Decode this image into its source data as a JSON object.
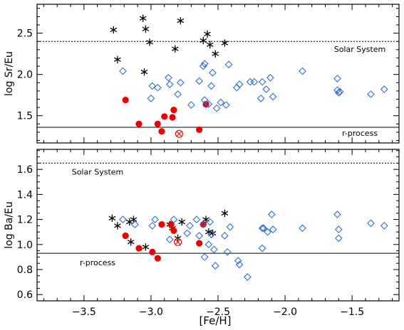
{
  "chart_data": [
    {
      "type": "scatter",
      "ylabel": "log Sr/Eu",
      "xlim": [
        -3.85,
        -1.15
      ],
      "ylim": [
        1.17,
        2.85
      ],
      "yticks": [
        1.5,
        2.0,
        2.5
      ],
      "ytick_labels": [
        "1.5",
        "2.0",
        "2.5"
      ],
      "reference_lines": [
        {
          "label": "Solar System",
          "y": 2.4,
          "style": "dotted"
        },
        {
          "label": "r-process",
          "y": 1.36,
          "style": "solid"
        }
      ],
      "series": [
        {
          "marker": "asterisk",
          "color": "#000000",
          "points": [
            [
              -3.28,
              2.54
            ],
            [
              -3.25,
              2.18
            ],
            [
              -3.06,
              2.68
            ],
            [
              -3.04,
              2.55
            ],
            [
              -3.01,
              2.39
            ],
            [
              -3.05,
              2.03
            ],
            [
              -2.82,
              2.31
            ],
            [
              -2.78,
              2.65
            ],
            [
              -2.61,
              2.41
            ],
            [
              -2.58,
              2.49
            ],
            [
              -2.56,
              2.36
            ],
            [
              -2.52,
              2.25
            ],
            [
              -2.45,
              2.38
            ]
          ]
        },
        {
          "marker": "filled-circle",
          "color": "#ee0000",
          "points": [
            [
              -3.19,
              1.69
            ],
            [
              -3.09,
              1.4
            ],
            [
              -2.95,
              1.4
            ],
            [
              -2.92,
              1.31
            ],
            [
              -2.9,
              1.49
            ],
            [
              -2.84,
              1.48
            ],
            [
              -2.83,
              1.57
            ],
            [
              -2.64,
              1.33
            ],
            [
              -2.59,
              1.64
            ]
          ]
        },
        {
          "marker": "circle-cross",
          "color": "#ee0000",
          "points": [
            [
              -2.79,
              1.28
            ]
          ]
        },
        {
          "marker": "open-diamond",
          "color": "#2e6fd6",
          "points": [
            [
              -3.21,
              2.04
            ],
            [
              -2.99,
              1.86
            ],
            [
              -3.0,
              1.71
            ],
            [
              -2.95,
              1.84
            ],
            [
              -2.87,
              1.96
            ],
            [
              -2.86,
              1.88
            ],
            [
              -2.8,
              1.76
            ],
            [
              -2.78,
              1.9
            ],
            [
              -2.7,
              1.63
            ],
            [
              -2.64,
              1.92
            ],
            [
              -2.61,
              2.1
            ],
            [
              -2.6,
              2.13
            ],
            [
              -2.6,
              1.69
            ],
            [
              -2.57,
              1.64
            ],
            [
              -2.55,
              1.86
            ],
            [
              -2.54,
              2.02
            ],
            [
              -2.51,
              1.59
            ],
            [
              -2.48,
              1.66
            ],
            [
              -2.44,
              1.63
            ],
            [
              -2.42,
              2.12
            ],
            [
              -2.36,
              1.84
            ],
            [
              -2.34,
              1.88
            ],
            [
              -2.26,
              1.91
            ],
            [
              -2.23,
              1.91
            ],
            [
              -2.18,
              1.71
            ],
            [
              -2.17,
              1.91
            ],
            [
              -2.14,
              1.82
            ],
            [
              -2.11,
              1.96
            ],
            [
              -2.09,
              1.73
            ],
            [
              -1.87,
              2.04
            ],
            [
              -1.61,
              1.95
            ],
            [
              -1.61,
              1.81
            ],
            [
              -1.6,
              1.78
            ],
            [
              -1.59,
              1.79
            ],
            [
              -1.36,
              1.76
            ],
            [
              -1.26,
              1.82
            ]
          ]
        }
      ]
    },
    {
      "type": "scatter",
      "xlabel": "[Fe/H]",
      "ylabel": "log Ba/Eu",
      "xlim": [
        -3.85,
        -1.15
      ],
      "ylim": [
        0.55,
        1.76
      ],
      "xticks": [
        -3.5,
        -3.0,
        -2.5,
        -2.0,
        -1.5
      ],
      "xtick_labels": [
        "−3.5",
        "−3.0",
        "−2.5",
        "−2.0",
        "−1.5"
      ],
      "yticks": [
        0.6,
        0.8,
        1.0,
        1.2,
        1.4,
        1.6
      ],
      "ytick_labels": [
        "0.6",
        "0.8",
        "1.0",
        "1.2",
        "1.4",
        "1.6"
      ],
      "reference_lines": [
        {
          "label": "Solar System",
          "y": 1.65,
          "style": "dotted"
        },
        {
          "label": "r-process",
          "y": 0.93,
          "style": "solid"
        }
      ],
      "series": [
        {
          "marker": "asterisk",
          "color": "#000000",
          "points": [
            [
              -3.29,
              1.21
            ],
            [
              -3.25,
              1.15
            ],
            [
              -3.16,
              1.18
            ],
            [
              -3.13,
              1.2
            ],
            [
              -3.15,
              1.02
            ],
            [
              -3.04,
              0.98
            ],
            [
              -2.86,
              1.16
            ],
            [
              -2.84,
              1.13
            ],
            [
              -2.8,
              1.05
            ],
            [
              -2.77,
              1.18
            ],
            [
              -2.59,
              1.2
            ],
            [
              -2.57,
              1.1
            ],
            [
              -2.54,
              1.09
            ],
            [
              -2.45,
              1.25
            ]
          ]
        },
        {
          "marker": "filled-circle",
          "color": "#ee0000",
          "points": [
            [
              -3.19,
              1.07
            ],
            [
              -3.09,
              0.97
            ],
            [
              -2.99,
              0.94
            ],
            [
              -2.95,
              0.89
            ],
            [
              -2.92,
              1.16
            ],
            [
              -2.85,
              1.16
            ],
            [
              -2.83,
              1.11
            ],
            [
              -2.64,
              1.01
            ],
            [
              -2.61,
              1.16
            ]
          ]
        },
        {
          "marker": "circle-cross",
          "color": "#ee0000",
          "points": [
            [
              -2.8,
              1.02
            ]
          ]
        },
        {
          "marker": "open-diamond",
          "color": "#2e6fd6",
          "points": [
            [
              -3.21,
              1.2
            ],
            [
              -3.12,
              1.16
            ],
            [
              -2.99,
              1.15
            ],
            [
              -2.97,
              1.2
            ],
            [
              -2.86,
              1.04
            ],
            [
              -2.83,
              1.2
            ],
            [
              -2.73,
              1.09
            ],
            [
              -2.71,
              1.15
            ],
            [
              -2.66,
              1.2
            ],
            [
              -2.64,
              1.07
            ],
            [
              -2.61,
              1.16
            ],
            [
              -2.6,
              0.9
            ],
            [
              -2.57,
              1.0
            ],
            [
              -2.56,
              1.18
            ],
            [
              -2.55,
              1.08
            ],
            [
              -2.53,
              0.96
            ],
            [
              -2.52,
              0.83
            ],
            [
              -2.45,
              1.07
            ],
            [
              -2.43,
              0.94
            ],
            [
              -2.41,
              1.14
            ],
            [
              -2.35,
              0.87
            ],
            [
              -2.34,
              0.84
            ],
            [
              -2.28,
              0.74
            ],
            [
              -2.17,
              1.13
            ],
            [
              -2.17,
              0.97
            ],
            [
              -2.16,
              1.13
            ],
            [
              -2.13,
              1.1
            ],
            [
              -2.1,
              1.24
            ],
            [
              -2.09,
              1.12
            ],
            [
              -1.87,
              1.13
            ],
            [
              -1.61,
              1.24
            ],
            [
              -1.6,
              1.12
            ],
            [
              -1.6,
              1.05
            ],
            [
              -1.36,
              1.17
            ],
            [
              -1.26,
              1.15
            ]
          ]
        }
      ]
    }
  ]
}
